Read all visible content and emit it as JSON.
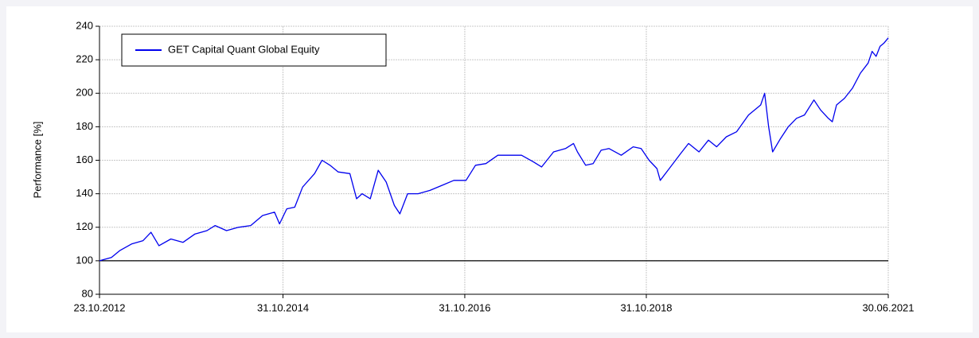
{
  "chart_data": {
    "type": "line",
    "y_label": "Performance [%]",
    "x": [
      "23.10.2012",
      "10.12.2012",
      "12.01.2013",
      "01.03.2013",
      "16.04.2013",
      "18.05.2013",
      "19.06.2013",
      "06.08.2013",
      "24.09.2013",
      "11.11.2013",
      "29.12.2013",
      "31.01.2014",
      "18.03.2014",
      "05.05.2014",
      "23.06.2014",
      "10.08.2014",
      "27.09.2014",
      "17.10.2014",
      "15.11.2014",
      "17.12.2014",
      "18.01.2015",
      "07.03.2015",
      "06.04.2015",
      "08.05.2015",
      "10.06.2015",
      "27.07.2015",
      "23.08.2015",
      "14.09.2015",
      "17.10.2015",
      "18.11.2015",
      "20.12.2015",
      "22.01.2016",
      "13.02.2016",
      "15.03.2016",
      "26.04.2016",
      "13.06.2016",
      "31.07.2016",
      "17.09.2016",
      "05.11.2016",
      "13.12.2016",
      "24.01.2017",
      "13.03.2017",
      "29.04.2017",
      "16.06.2017",
      "03.08.2017",
      "05.09.2017",
      "23.10.2017",
      "10.12.2017",
      "11.01.2018",
      "27.01.2018",
      "01.03.2018",
      "31.03.2018",
      "02.05.2018",
      "03.06.2018",
      "22.07.2018",
      "08.09.2018",
      "10.10.2018",
      "11.11.2018",
      "13.12.2018",
      "26.12.2018",
      "31.01.2019",
      "18.03.2019",
      "19.04.2019",
      "31.05.2019",
      "08.07.2019",
      "10.08.2019",
      "18.09.2019",
      "29.10.2019",
      "16.12.2019",
      "03.02.2020",
      "19.02.2020",
      "06.03.2020",
      "22.03.2020",
      "23.04.2020",
      "24.05.2020",
      "26.06.2020",
      "28.07.2020",
      "04.09.2020",
      "01.10.2020",
      "01.11.2020",
      "17.11.2020",
      "04.12.2020",
      "05.01.2021",
      "06.02.2021",
      "10.03.2021",
      "10.04.2021",
      "26.04.2021",
      "12.05.2021",
      "28.05.2021",
      "13.06.2021",
      "30.06.2021"
    ],
    "series": [
      {
        "name": "GET Capital Quant Global Equity",
        "color": "#0000ee",
        "values": [
          100,
          102,
          106,
          110,
          112,
          117,
          109,
          113,
          111,
          116,
          118,
          121,
          118,
          120,
          121,
          127,
          129,
          122,
          131,
          132,
          144,
          152,
          160,
          157,
          153,
          152,
          137,
          140,
          137,
          154,
          147,
          133,
          128,
          140,
          140,
          142,
          145,
          148,
          148,
          157,
          158,
          163,
          163,
          163,
          159,
          156,
          165,
          167,
          170,
          165,
          157,
          158,
          166,
          167,
          163,
          168,
          167,
          160,
          155,
          148,
          155,
          164,
          170,
          165,
          172,
          168,
          174,
          177,
          187,
          193,
          200,
          180,
          165,
          173,
          180,
          185,
          187,
          196,
          190,
          185,
          183,
          193,
          197,
          203,
          212,
          218,
          225,
          222,
          228,
          230,
          233
        ]
      }
    ],
    "xlim": [
      "23.10.2012",
      "30.06.2021"
    ],
    "xticks": [
      "23.10.2012",
      "31.10.2014",
      "31.10.2016",
      "31.10.2018",
      "30.06.2021"
    ],
    "ylim": [
      80,
      240
    ],
    "yticks": [
      80,
      100,
      120,
      140,
      160,
      180,
      200,
      220,
      240
    ],
    "reference_line": {
      "value": 100,
      "color": "#000000"
    },
    "grid": true,
    "legend": "upper left"
  }
}
